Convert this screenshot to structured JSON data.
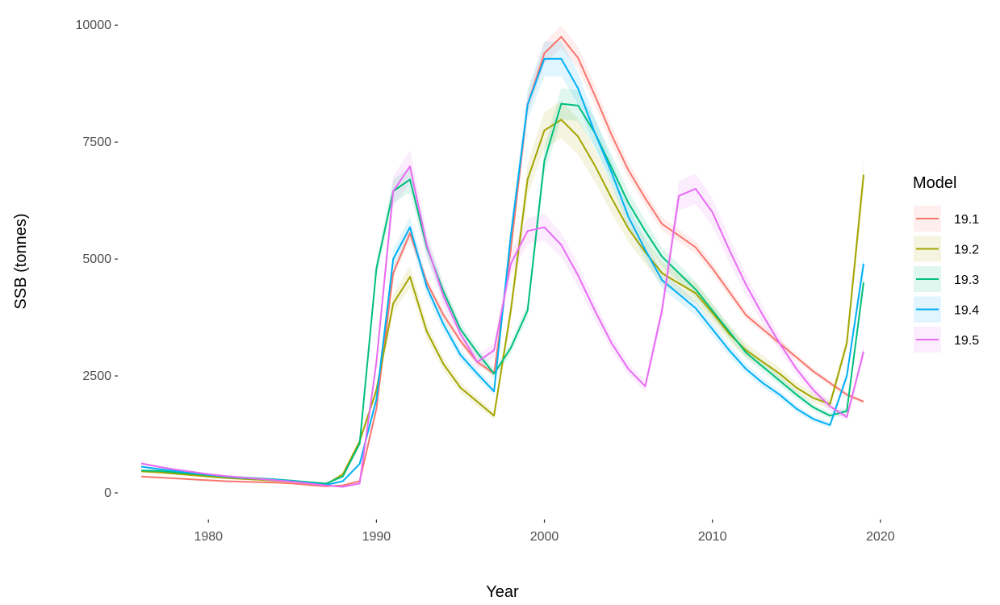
{
  "chart_data": {
    "type": "line",
    "title": "",
    "xlabel": "Year",
    "ylabel": "SSB (tonnes)",
    "xlim": [
      1976,
      2019
    ],
    "ylim": [
      0,
      10000
    ],
    "x_ticks": [
      1980,
      1990,
      2000,
      2010,
      2020
    ],
    "y_ticks": [
      0,
      2500,
      5000,
      7500,
      10000
    ],
    "y_tick_labels": [
      "0",
      "2500",
      "5000",
      "7500",
      "10000"
    ],
    "grid": false,
    "legend": {
      "title": "Model",
      "position": "right"
    },
    "x": [
      1976,
      1977,
      1978,
      1979,
      1980,
      1981,
      1982,
      1983,
      1984,
      1985,
      1986,
      1987,
      1988,
      1989,
      1990,
      1991,
      1992,
      1993,
      1994,
      1995,
      1996,
      1997,
      1998,
      1999,
      2000,
      2001,
      2002,
      2003,
      2004,
      2005,
      2006,
      2007,
      2008,
      2009,
      2010,
      2011,
      2012,
      2013,
      2014,
      2015,
      2016,
      2017,
      2018,
      2019
    ],
    "series": [
      {
        "name": "19.1",
        "color": "#F8766D",
        "band": 0.025,
        "values": [
          350,
          330,
          310,
          290,
          270,
          250,
          240,
          230,
          220,
          200,
          170,
          140,
          160,
          250,
          1800,
          4700,
          5550,
          4500,
          3800,
          3250,
          2800,
          2550,
          5200,
          8300,
          9400,
          9750,
          9300,
          8500,
          7650,
          6900,
          6300,
          5750,
          5500,
          5250,
          4800,
          4300,
          3800,
          3500,
          3200,
          2900,
          2600,
          2350,
          2100,
          1950
        ]
      },
      {
        "name": "19.2",
        "color": "#A3A500",
        "band": 0.05,
        "values": [
          460,
          440,
          410,
          380,
          350,
          320,
          300,
          280,
          260,
          240,
          210,
          180,
          400,
          1100,
          2200,
          4050,
          4620,
          3450,
          2750,
          2250,
          1950,
          1650,
          3900,
          6700,
          7750,
          7980,
          7620,
          7000,
          6300,
          5650,
          5150,
          4700,
          4480,
          4270,
          3850,
          3400,
          3050,
          2800,
          2550,
          2250,
          2030,
          1900,
          3200,
          6800
        ]
      },
      {
        "name": "19.3",
        "color": "#00BF7D",
        "band": 0.04,
        "values": [
          480,
          470,
          440,
          410,
          380,
          350,
          330,
          310,
          290,
          260,
          230,
          200,
          350,
          1050,
          4800,
          6450,
          6700,
          5250,
          4300,
          3500,
          3000,
          2550,
          3100,
          3900,
          7100,
          8320,
          8280,
          7700,
          6950,
          6200,
          5600,
          5050,
          4700,
          4350,
          3900,
          3450,
          3000,
          2700,
          2400,
          2100,
          1830,
          1650,
          1750,
          4500
        ]
      },
      {
        "name": "19.4",
        "color": "#00B0F6",
        "band": 0.04,
        "values": [
          560,
          510,
          470,
          430,
          390,
          350,
          320,
          300,
          280,
          250,
          210,
          170,
          250,
          620,
          2000,
          5000,
          5680,
          4400,
          3600,
          2950,
          2550,
          2170,
          5500,
          8300,
          9280,
          9280,
          8650,
          7700,
          6850,
          5900,
          5200,
          4550,
          4250,
          3950,
          3500,
          3050,
          2650,
          2350,
          2100,
          1800,
          1580,
          1450,
          2500,
          4900
        ]
      },
      {
        "name": "19.5",
        "color": "#E76BF3",
        "band": 0.05,
        "values": [
          630,
          560,
          500,
          450,
          400,
          360,
          330,
          300,
          270,
          240,
          200,
          160,
          130,
          200,
          2800,
          6450,
          6980,
          5300,
          4200,
          3400,
          2800,
          3050,
          4900,
          5600,
          5680,
          5300,
          4650,
          3900,
          3200,
          2650,
          2280,
          3900,
          6350,
          6500,
          6000,
          5200,
          4450,
          3800,
          3200,
          2650,
          2200,
          1850,
          1620,
          3020
        ]
      }
    ]
  }
}
